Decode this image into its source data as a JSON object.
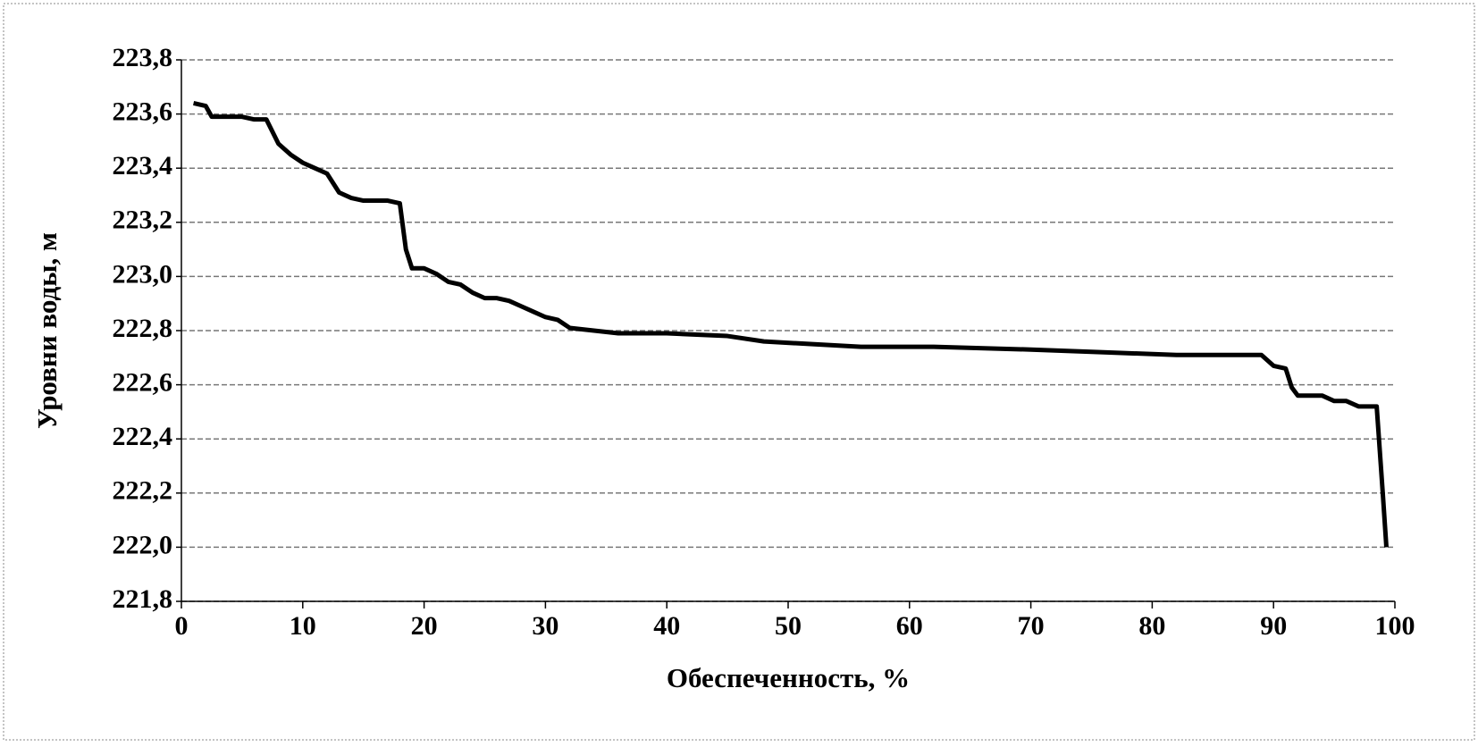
{
  "chart_data": {
    "type": "line",
    "x_label": "Обеспеченность, %",
    "y_label": "Уровни воды, м",
    "x": [
      1,
      2,
      2.5,
      5,
      6,
      7,
      8,
      9,
      10,
      11,
      12,
      13,
      14,
      15,
      17,
      18,
      18.5,
      19,
      20,
      21,
      22,
      23,
      24,
      25,
      26,
      27,
      28,
      29,
      30,
      31,
      32,
      34,
      36,
      40,
      45,
      48,
      52,
      56,
      62,
      70,
      76,
      82,
      89,
      90,
      91,
      91.5,
      92,
      94,
      95,
      96,
      97,
      98,
      98.5,
      99,
      99.3
    ],
    "series": [
      {
        "name": "Уровни воды",
        "color": "#000000",
        "values": [
          223.64,
          223.63,
          223.59,
          223.59,
          223.58,
          223.58,
          223.49,
          223.45,
          223.42,
          223.4,
          223.38,
          223.31,
          223.29,
          223.28,
          223.28,
          223.27,
          223.1,
          223.03,
          223.03,
          223.01,
          222.98,
          222.97,
          222.94,
          222.92,
          222.92,
          222.91,
          222.89,
          222.87,
          222.85,
          222.84,
          222.81,
          222.8,
          222.79,
          222.79,
          222.78,
          222.76,
          222.75,
          222.74,
          222.74,
          222.73,
          222.72,
          222.71,
          222.71,
          222.67,
          222.66,
          222.59,
          222.56,
          222.56,
          222.54,
          222.54,
          222.52,
          222.52,
          222.52,
          222.2,
          222.0
        ]
      }
    ],
    "xlim": [
      0,
      100
    ],
    "xticks": [
      0,
      10,
      20,
      30,
      40,
      50,
      60,
      70,
      80,
      90,
      100
    ],
    "ylim": [
      221.8,
      223.8
    ],
    "yticks": [
      {
        "value": 221.8,
        "label": "221,8"
      },
      {
        "value": 222.0,
        "label": "222,0"
      },
      {
        "value": 222.2,
        "label": "222,2"
      },
      {
        "value": 222.4,
        "label": "222,4"
      },
      {
        "value": 222.6,
        "label": "222,6"
      },
      {
        "value": 222.8,
        "label": "222,8"
      },
      {
        "value": 223.0,
        "label": "223,0"
      },
      {
        "value": 223.2,
        "label": "223,2"
      },
      {
        "value": 223.4,
        "label": "223,4"
      },
      {
        "value": 223.6,
        "label": "223,6"
      },
      {
        "value": 223.8,
        "label": "223,8"
      }
    ],
    "grid": true
  }
}
